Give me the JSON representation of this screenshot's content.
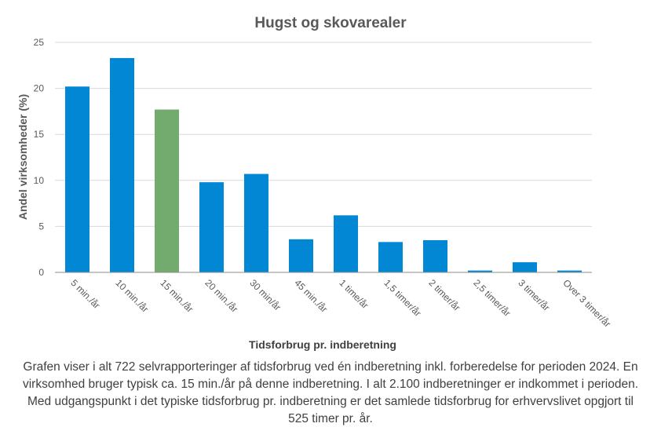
{
  "chart_data": {
    "type": "bar",
    "title": "Hugst og skovarealer",
    "xlabel": "Tidsforbrug pr. indberetning",
    "ylabel": "Andel virksomheder  (%)",
    "ylim": [
      0,
      25
    ],
    "yticks": [
      0,
      5,
      10,
      15,
      20,
      25
    ],
    "grid": true,
    "categories": [
      "5 min./år",
      "10 min./år",
      "15 min./år",
      "20 min./år",
      "30 min/år",
      "45 min./år",
      "1 time/år",
      "1,5 timer/år",
      "2 timer/år",
      "2,5 timer/år",
      "3 timer/år",
      "Over 3 timer/år"
    ],
    "values": [
      20.2,
      23.3,
      17.7,
      9.8,
      10.7,
      3.6,
      6.2,
      3.3,
      3.5,
      0.2,
      1.1,
      0.2
    ],
    "colors": {
      "default": "#0287D5",
      "highlight": "#73AA6E",
      "highlight_index": 2,
      "grid": "#D9D9D9",
      "axis": "#8C8C8C",
      "text": "#595959"
    }
  },
  "caption": "Grafen viser i alt 722 selvrapporteringer af tidsforbrug ved én indberetning inkl. forberedelse for perioden 2024. En virksomhed bruger typisk ca. 15 min./år på denne indberetning. I alt 2.100 indberetninger er indkommet i perioden. Med udgangspunkt i det typiske tidsforbrug pr. indberetning er det samlede tidsforbrug for erhvervslivet opgjort til 525 timer pr. år."
}
